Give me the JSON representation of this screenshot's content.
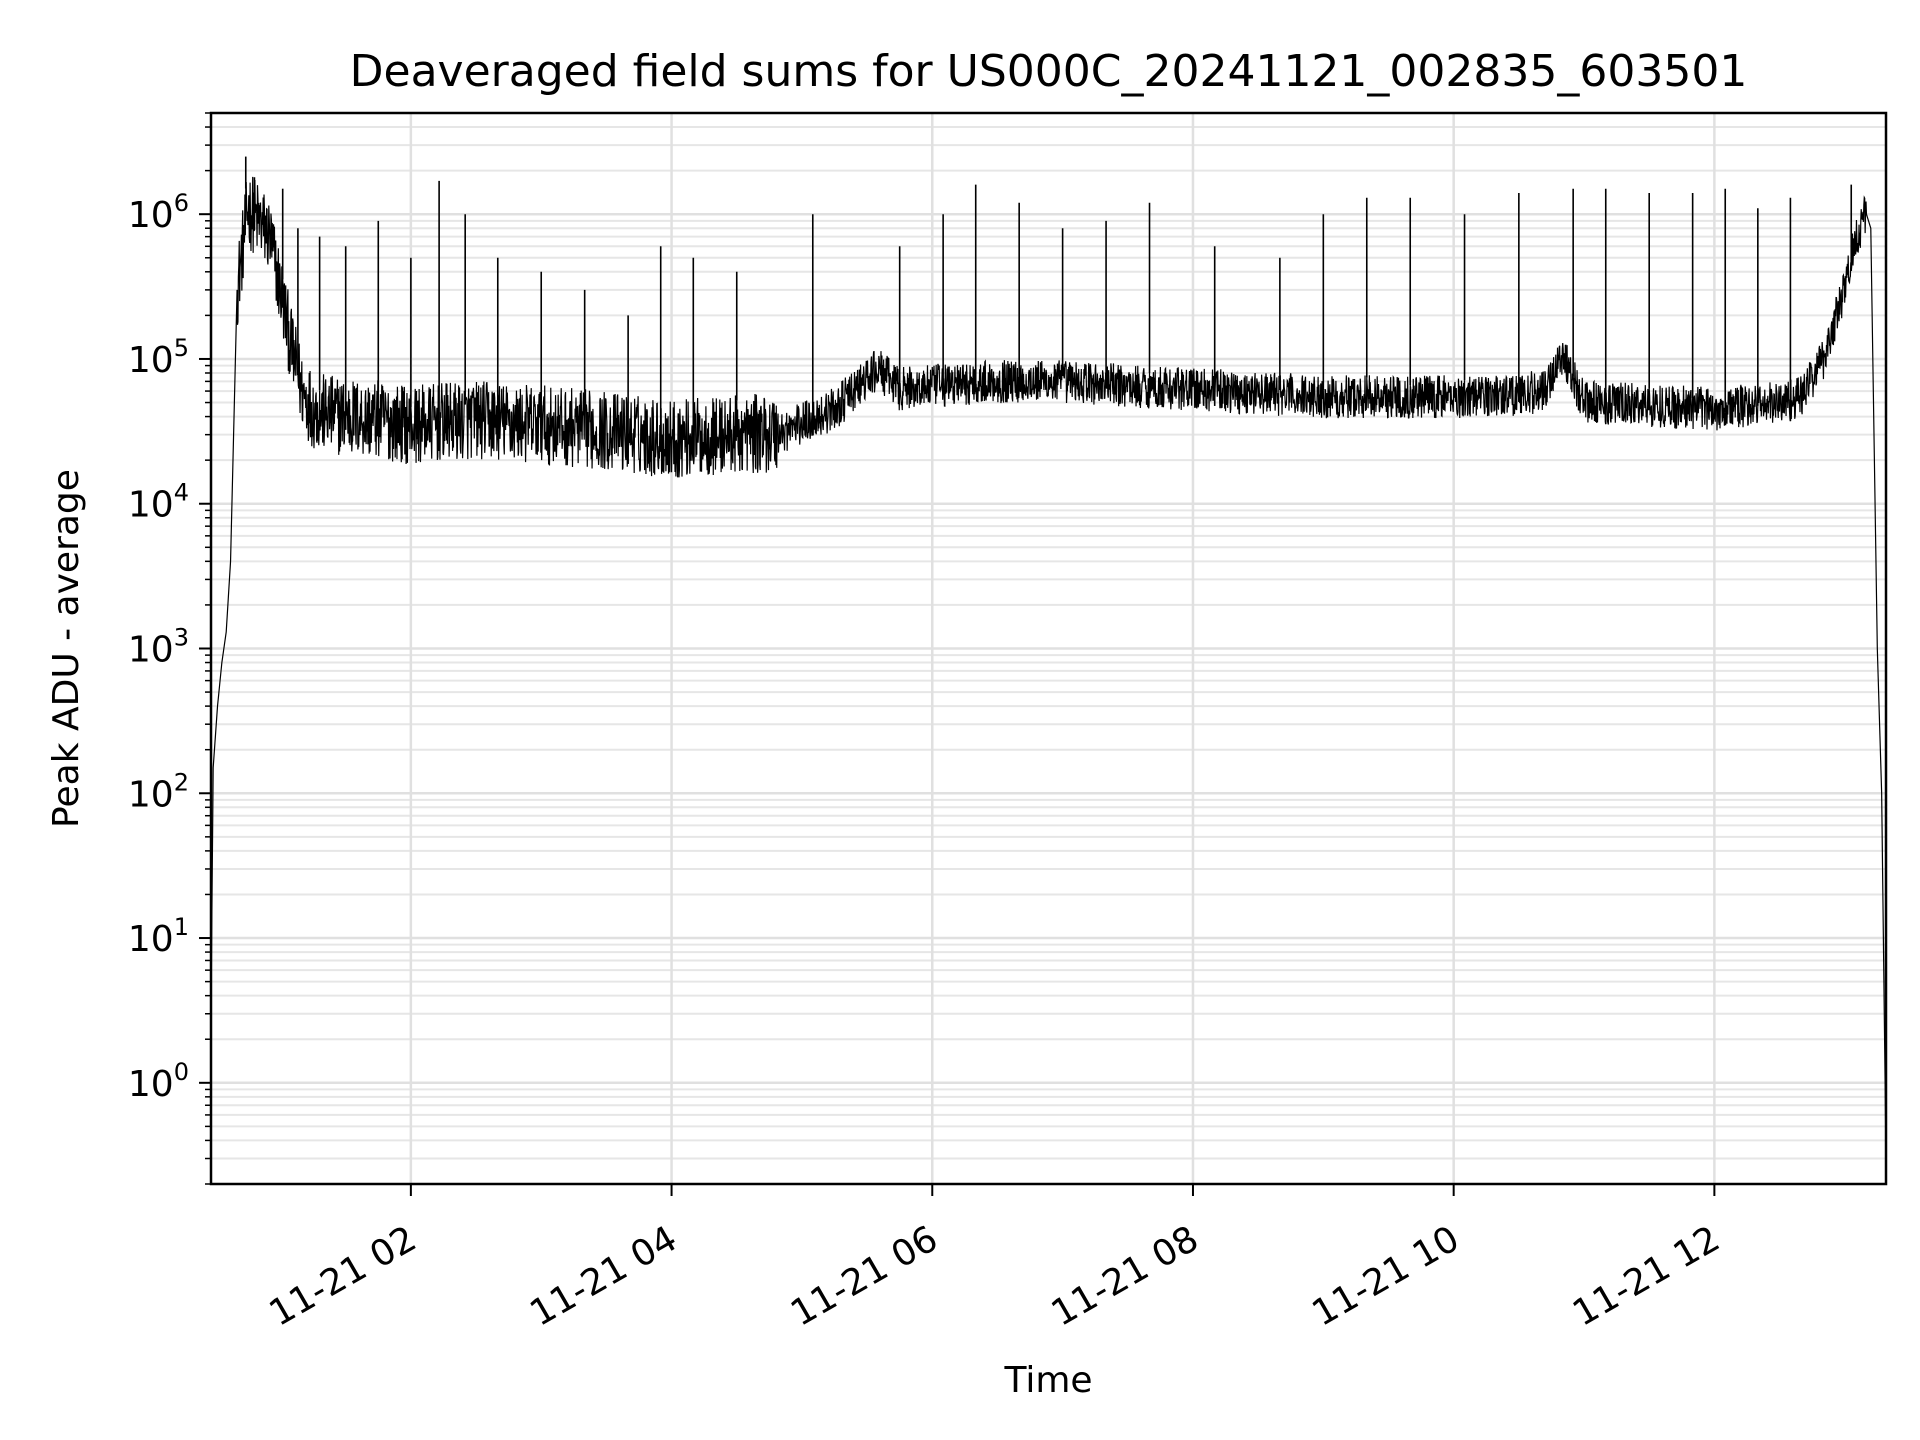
{
  "chart_data": {
    "type": "line",
    "title": "Deaveraged field sums for US000C_20241121_002835_603501",
    "xlabel": "Time",
    "ylabel": "Peak ADU - average",
    "yscale": "log",
    "ylim": [
      0.2,
      5000000
    ],
    "xlim": [
      "2024-11-21 00:28",
      "2024-11-21 13:19"
    ],
    "grid": true,
    "x_ticks": [
      {
        "value": "2024-11-21 02:00",
        "label": "11-21 02"
      },
      {
        "value": "2024-11-21 04:00",
        "label": "11-21 04"
      },
      {
        "value": "2024-11-21 06:00",
        "label": "11-21 06"
      },
      {
        "value": "2024-11-21 08:00",
        "label": "11-21 08"
      },
      {
        "value": "2024-11-21 10:00",
        "label": "11-21 10"
      },
      {
        "value": "2024-11-21 12:00",
        "label": "11-21 12"
      }
    ],
    "y_ticks": [
      {
        "value": 1,
        "base": "10",
        "exp": "0"
      },
      {
        "value": 10,
        "base": "10",
        "exp": "1"
      },
      {
        "value": 100,
        "base": "10",
        "exp": "2"
      },
      {
        "value": 1000,
        "base": "10",
        "exp": "3"
      },
      {
        "value": 10000,
        "base": "10",
        "exp": "4"
      },
      {
        "value": 100000,
        "base": "10",
        "exp": "5"
      },
      {
        "value": 1000000,
        "base": "10",
        "exp": "6"
      }
    ],
    "line_color": "#000000",
    "series": [
      {
        "x": [
          "2024-11-21 00:28",
          "2024-11-21 00:29",
          "2024-11-21 00:31",
          "2024-11-21 00:33",
          "2024-11-21 00:35",
          "2024-11-21 00:37",
          "2024-11-21 00:40",
          "2024-11-21 00:45",
          "2024-11-21 00:50",
          "2024-11-21 00:55",
          "2024-11-21 01:00",
          "2024-11-21 01:05",
          "2024-11-21 01:10",
          "2024-11-21 01:15",
          "2024-11-21 01:20",
          "2024-11-21 01:30",
          "2024-11-21 01:45",
          "2024-11-21 02:00",
          "2024-11-21 02:30",
          "2024-11-21 03:00",
          "2024-11-21 03:30",
          "2024-11-21 04:00",
          "2024-11-21 04:30",
          "2024-11-21 04:50",
          "2024-11-21 05:15",
          "2024-11-21 05:35",
          "2024-11-21 05:45",
          "2024-11-21 06:00",
          "2024-11-21 06:30",
          "2024-11-21 07:00",
          "2024-11-21 07:30",
          "2024-11-21 08:00",
          "2024-11-21 08:30",
          "2024-11-21 09:00",
          "2024-11-21 09:30",
          "2024-11-21 10:00",
          "2024-11-21 10:30",
          "2024-11-21 10:42",
          "2024-11-21 10:50",
          "2024-11-21 11:00",
          "2024-11-21 11:30",
          "2024-11-21 12:00",
          "2024-11-21 12:30",
          "2024-11-21 12:40",
          "2024-11-21 12:50",
          "2024-11-21 13:00",
          "2024-11-21 13:05",
          "2024-11-21 13:10",
          "2024-11-21 13:12",
          "2024-11-21 13:15",
          "2024-11-21 13:17",
          "2024-11-21 13:19"
        ],
        "y": [
          3,
          150,
          400,
          800,
          1300,
          4000,
          300000,
          1100000,
          900000,
          700000,
          300000,
          120000,
          60000,
          45000,
          42000,
          40000,
          38000,
          35000,
          38000,
          35000,
          32000,
          28000,
          30000,
          31000,
          45000,
          85000,
          62000,
          65000,
          70000,
          70000,
          65000,
          62000,
          58000,
          55000,
          55000,
          55000,
          57000,
          60000,
          110000,
          50000,
          48000,
          45000,
          50000,
          55000,
          100000,
          300000,
          700000,
          1000000,
          800000,
          1000,
          100,
          0.3
        ]
      }
    ],
    "spikes": [
      {
        "x": "2024-11-21 00:44",
        "y": 2500000
      },
      {
        "x": "2024-11-21 00:48",
        "y": 1800000
      },
      {
        "x": "2024-11-21 01:01",
        "y": 1500000
      },
      {
        "x": "2024-11-21 01:08",
        "y": 800000
      },
      {
        "x": "2024-11-21 01:18",
        "y": 700000
      },
      {
        "x": "2024-11-21 01:30",
        "y": 600000
      },
      {
        "x": "2024-11-21 01:45",
        "y": 900000
      },
      {
        "x": "2024-11-21 02:00",
        "y": 500000
      },
      {
        "x": "2024-11-21 02:13",
        "y": 1700000
      },
      {
        "x": "2024-11-21 02:25",
        "y": 1000000
      },
      {
        "x": "2024-11-21 02:40",
        "y": 500000
      },
      {
        "x": "2024-11-21 03:00",
        "y": 400000
      },
      {
        "x": "2024-11-21 03:20",
        "y": 300000
      },
      {
        "x": "2024-11-21 03:40",
        "y": 200000
      },
      {
        "x": "2024-11-21 03:55",
        "y": 600000
      },
      {
        "x": "2024-11-21 04:10",
        "y": 500000
      },
      {
        "x": "2024-11-21 04:30",
        "y": 400000
      },
      {
        "x": "2024-11-21 05:05",
        "y": 1000000
      },
      {
        "x": "2024-11-21 05:45",
        "y": 600000
      },
      {
        "x": "2024-11-21 06:05",
        "y": 1000000
      },
      {
        "x": "2024-11-21 06:20",
        "y": 1600000
      },
      {
        "x": "2024-11-21 06:40",
        "y": 1200000
      },
      {
        "x": "2024-11-21 07:00",
        "y": 800000
      },
      {
        "x": "2024-11-21 07:20",
        "y": 900000
      },
      {
        "x": "2024-11-21 07:40",
        "y": 1200000
      },
      {
        "x": "2024-11-21 08:10",
        "y": 600000
      },
      {
        "x": "2024-11-21 08:40",
        "y": 500000
      },
      {
        "x": "2024-11-21 09:00",
        "y": 1000000
      },
      {
        "x": "2024-11-21 09:20",
        "y": 1300000
      },
      {
        "x": "2024-11-21 09:40",
        "y": 1300000
      },
      {
        "x": "2024-11-21 10:05",
        "y": 1000000
      },
      {
        "x": "2024-11-21 10:30",
        "y": 1400000
      },
      {
        "x": "2024-11-21 10:55",
        "y": 1500000
      },
      {
        "x": "2024-11-21 11:10",
        "y": 1500000
      },
      {
        "x": "2024-11-21 11:30",
        "y": 1400000
      },
      {
        "x": "2024-11-21 11:50",
        "y": 1400000
      },
      {
        "x": "2024-11-21 12:05",
        "y": 1500000
      },
      {
        "x": "2024-11-21 12:20",
        "y": 1100000
      },
      {
        "x": "2024-11-21 12:35",
        "y": 1300000
      },
      {
        "x": "2024-11-21 13:03",
        "y": 1600000
      }
    ]
  }
}
